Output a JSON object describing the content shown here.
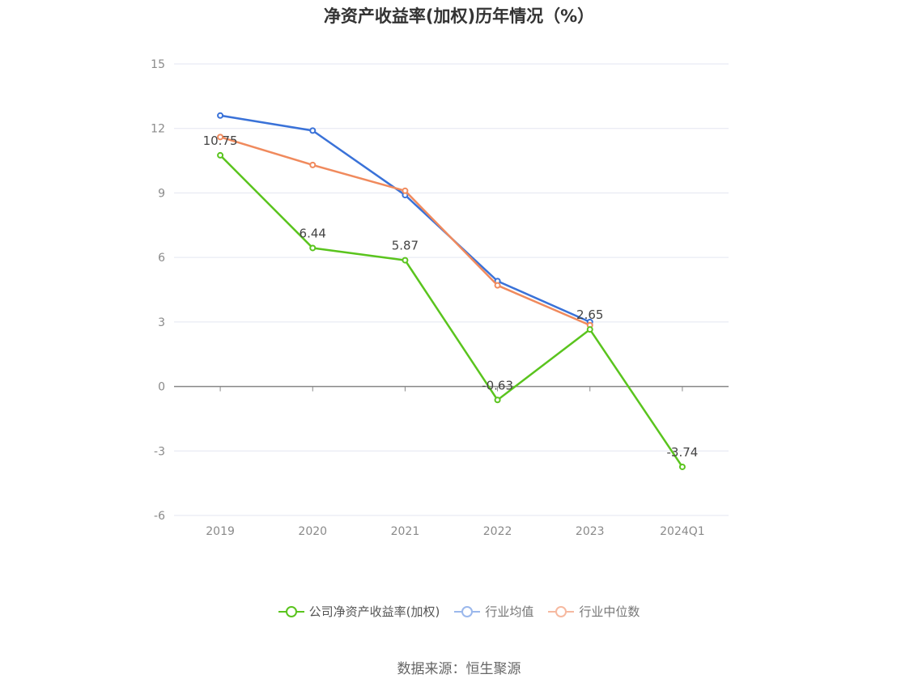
{
  "chart_data": {
    "type": "line",
    "title": "净资产收益率(加权)历年情况（%）",
    "categories": [
      "2019",
      "2020",
      "2021",
      "2022",
      "2023",
      "2024Q1"
    ],
    "y_ticks": [
      15,
      12,
      9,
      6,
      3,
      0,
      -3,
      -6
    ],
    "ylim": [
      -6,
      15
    ],
    "grid": true,
    "legend_position": "bottom",
    "series": [
      {
        "name": "公司净资产收益率(加权)",
        "color": "#5ac41e",
        "values": [
          10.75,
          6.44,
          5.87,
          -0.63,
          2.65,
          -3.74
        ],
        "labels": [
          "10.75",
          "6.44",
          "5.87",
          "-0.63",
          "2.65",
          "-3.74"
        ]
      },
      {
        "name": "行业均值",
        "color": "#3a72d8",
        "values": [
          12.6,
          11.9,
          8.9,
          4.9,
          3.0,
          null
        ]
      },
      {
        "name": "行业中位数",
        "color": "#f08a5d",
        "values": [
          11.6,
          10.3,
          9.1,
          4.7,
          2.85,
          null
        ]
      }
    ]
  },
  "source_text": "数据来源：恒生聚源"
}
